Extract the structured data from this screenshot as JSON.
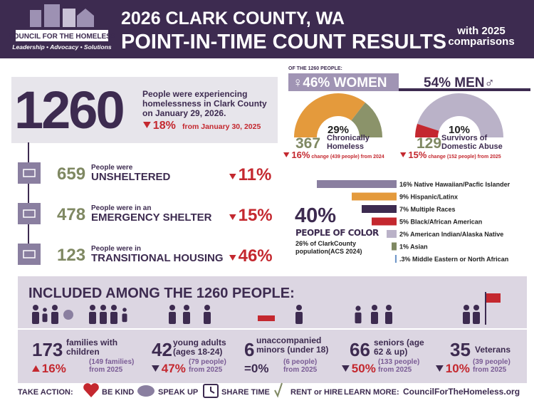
{
  "header": {
    "logo_name": "COUNCIL FOR THE HOMELESS",
    "logo_tagline": "Leadership • Advocacy • Solutions",
    "title_line1": "2026 CLARK COUNTY, WA",
    "title_line2": "POINT-IN-TIME COUNT RESULTS",
    "subtitle": [
      "with 2025",
      "comparisons"
    ]
  },
  "total": {
    "count": "1260",
    "text": [
      "People were experiencing",
      "homelessness in Clark County",
      "on January 29, 2026."
    ],
    "change": "18%",
    "direction": "down",
    "change_note": "from January 30, 2025"
  },
  "shelter": [
    {
      "count": "659",
      "label_top": "People were",
      "label_main": "UNSHELTERED",
      "change": "11%",
      "direction": "down"
    },
    {
      "count": "478",
      "label_top": "People were in an",
      "label_main": "EMERGENCY SHELTER",
      "change": "15%",
      "direction": "down"
    },
    {
      "count": "123",
      "label_top": "People were in",
      "label_main": "TRANSITIONAL HOUSING",
      "change": "46%",
      "direction": "down"
    }
  ],
  "gender": {
    "heading": "OF THE 1260 PEOPLE:",
    "women": "♀46% WOMEN",
    "men": "54% MEN♂"
  },
  "gauges": [
    {
      "value": 29,
      "value_label": "29%",
      "side": "right",
      "colors": [
        "#8b936a",
        "#e49a3c"
      ],
      "count": "367",
      "label": [
        "Chronically",
        "Homeless"
      ],
      "change": "16%",
      "direction": "down",
      "change_note": "change (439 people) from 2024"
    },
    {
      "value": 10,
      "value_label": "10%",
      "side": "left",
      "colors": [
        "#c4282f",
        "#bab2c8"
      ],
      "count": "129",
      "label": [
        "Survivors of",
        "Domestic Abuse"
      ],
      "change": "15%",
      "direction": "down",
      "change_note": "change (152 people) from 2025"
    }
  ],
  "race": {
    "total": "40%",
    "total_label": "PEOPLE OF COLOR",
    "note": [
      "26% of ClarkCounty",
      "population(ACS 2024)"
    ],
    "groups": [
      {
        "value": 16,
        "label": "16% Native Hawaiian/Pacfic Islander",
        "color": "#8a7fa0"
      },
      {
        "value": 9,
        "label": "9% Hispanic/Latinx",
        "color": "#e49a3c"
      },
      {
        "value": 7,
        "label": "7% Multiple Races",
        "color": "#3d2b50"
      },
      {
        "value": 5,
        "label": "5% Black/African American",
        "color": "#c4282f"
      },
      {
        "value": 2,
        "label": "2% American Indian/Alaska Native",
        "color": "#bab2c8"
      },
      {
        "value": 1,
        "label": "1% Asian",
        "color": "#7f8862"
      },
      {
        "value": 0.3,
        "label": ".3% Middle Eastern or North African",
        "color": "#6f97c9"
      }
    ]
  },
  "included": {
    "heading": "INCLUDED AMONG THE 1260 PEOPLE:",
    "items": [
      {
        "count": "173",
        "label": [
          "families with",
          "children"
        ],
        "previous": "(149 families)",
        "from": "from 2025",
        "change": "16%",
        "direction": "up"
      },
      {
        "count": "42",
        "label": [
          "young adults",
          "(ages 18-24)"
        ],
        "previous": "(79 people)",
        "from": "from 2025",
        "change": "47%",
        "direction": "down"
      },
      {
        "count": "6",
        "label": [
          "unaccompanied",
          "minors (under 18)"
        ],
        "previous": "(6  people)",
        "from": "from 2025",
        "change": "=0%",
        "direction": "same"
      },
      {
        "count": "66",
        "label": [
          "seniors (age",
          "62 & up)"
        ],
        "previous": "(133 people)",
        "from": "from 2025",
        "change": "50%",
        "direction": "down"
      },
      {
        "count": "35",
        "label": [
          "Veterans"
        ],
        "previous": "(39 people)",
        "from": "from 2025",
        "change": "10%",
        "direction": "down"
      }
    ]
  },
  "footer": {
    "take_action": "TAKE ACTION:",
    "actions": [
      "BE KIND",
      "SPEAK UP",
      "SHARE TIME",
      "RENT or HIRE"
    ],
    "learn_more": "LEARN MORE:",
    "url": "CouncilForTheHomeless.org"
  }
}
